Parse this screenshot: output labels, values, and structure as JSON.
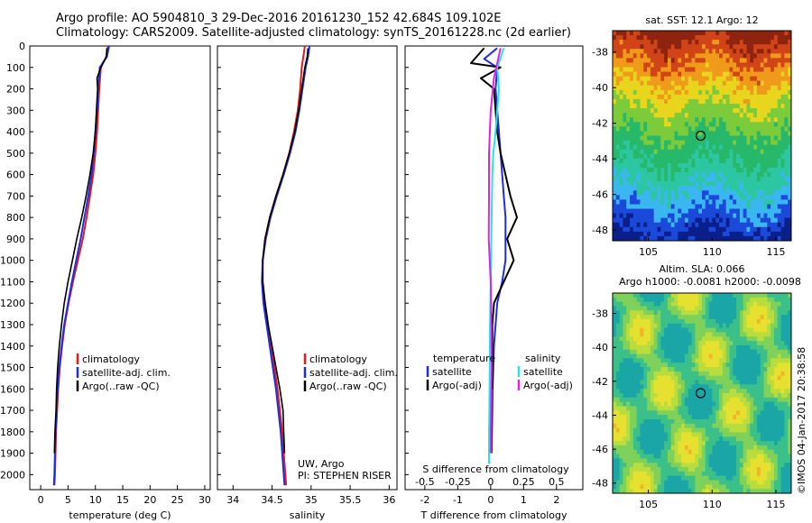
{
  "header": {
    "line1": "Argo profile: AO 5904810_3 29-Dec-2016 20161230_152 42.684S 109.102E",
    "line2": "Climatology: CARS2009. Satellite-adjusted climatology: synTS_20161228.nc (2d earlier)"
  },
  "colors": {
    "climatology": "#e8191c",
    "satellite": "#1f2de0",
    "argo": "#000000",
    "s_satellite": "#22e6e6",
    "s_argo": "#e81ee8"
  },
  "chart_data": [
    {
      "id": "temperature",
      "type": "line",
      "xlabel": "temperature (deg C)",
      "ylabel": "",
      "xlim": [
        -2,
        31
      ],
      "ylim": [
        2070,
        0
      ],
      "xticks": [
        0,
        5,
        10,
        15,
        20,
        25,
        30
      ],
      "xtick_labels": [
        "0",
        "5",
        "10",
        "15",
        "20",
        "25",
        "30"
      ],
      "yticks": [
        0,
        100,
        200,
        300,
        400,
        500,
        600,
        700,
        800,
        900,
        1000,
        1100,
        1200,
        1300,
        1400,
        1500,
        1600,
        1700,
        1800,
        1900,
        2000
      ],
      "ytick_labels": [
        "0",
        "100",
        "200",
        "300",
        "400",
        "500",
        "600",
        "700",
        "800",
        "900",
        "1000",
        "1100",
        "1200",
        "1300",
        "1400",
        "1500",
        "1600",
        "1700",
        "1800",
        "1900",
        "2000"
      ],
      "legend": [
        "climatology",
        "satellite-adj. clim.",
        "Argo(..raw -QC)"
      ],
      "series": [
        {
          "name": "climatology",
          "x": [
            12.3,
            12.0,
            11.0,
            10.7,
            10.5,
            10.3,
            10.0,
            9.6,
            9.0,
            8.4,
            7.7,
            6.8,
            5.9,
            5.1,
            4.4,
            3.9,
            3.5,
            3.2,
            3.0,
            2.8,
            2.7,
            2.6,
            2.5
          ],
          "y": [
            0,
            50,
            100,
            200,
            300,
            400,
            500,
            600,
            700,
            800,
            900,
            1000,
            1100,
            1200,
            1300,
            1400,
            1500,
            1600,
            1700,
            1800,
            1900,
            2000,
            2050
          ]
        },
        {
          "name": "satellite-adj. clim.",
          "x": [
            12.5,
            12.1,
            10.8,
            10.5,
            10.3,
            10.0,
            9.7,
            9.3,
            8.7,
            8.0,
            7.3,
            6.5,
            5.7,
            5.0,
            4.3,
            3.8,
            3.4,
            3.1,
            2.9,
            2.7,
            2.6,
            2.5,
            2.4
          ],
          "y": [
            0,
            50,
            100,
            200,
            300,
            400,
            500,
            600,
            700,
            800,
            900,
            1000,
            1100,
            1200,
            1300,
            1400,
            1500,
            1600,
            1700,
            1800,
            1900,
            2000,
            2050
          ]
        },
        {
          "name": "Argo(..raw -QC)",
          "x": [
            12.1,
            12.0,
            11.0,
            10.3,
            10.4,
            10.2,
            10.0,
            9.6,
            9.0,
            8.3,
            7.5,
            6.6,
            5.8,
            5.0,
            4.3,
            3.8,
            3.4,
            3.1,
            2.9,
            2.8,
            2.6,
            2.5
          ],
          "y": [
            10,
            50,
            100,
            150,
            200,
            300,
            400,
            500,
            600,
            700,
            800,
            900,
            1000,
            1100,
            1200,
            1300,
            1400,
            1500,
            1600,
            1700,
            1800,
            1900
          ]
        }
      ]
    },
    {
      "id": "salinity",
      "type": "line",
      "xlabel": "salinity",
      "ylabel": "",
      "xlim": [
        33.8,
        36.1
      ],
      "ylim": [
        2070,
        0
      ],
      "xticks": [
        34,
        34.5,
        35,
        35.5,
        36
      ],
      "xtick_labels": [
        "34",
        "34.5",
        "35",
        "35.5",
        "36"
      ],
      "legend": [
        "climatology",
        "satellite-adj. clim.",
        "Argo(..raw -QC)"
      ],
      "annotation_lines": [
        "UW, Argo",
        "PI: STEPHEN RISER"
      ],
      "series": [
        {
          "name": "climatology",
          "x": [
            34.92,
            34.9,
            34.88,
            34.86,
            34.83,
            34.78,
            34.72,
            34.64,
            34.55,
            34.47,
            34.41,
            34.38,
            34.38,
            34.41,
            34.45,
            34.49,
            34.53,
            34.57,
            34.6,
            34.63,
            34.65,
            34.67,
            34.68
          ],
          "y": [
            0,
            50,
            100,
            200,
            300,
            400,
            500,
            600,
            700,
            800,
            900,
            1000,
            1100,
            1200,
            1300,
            1400,
            1500,
            1600,
            1700,
            1800,
            1900,
            2000,
            2050
          ]
        },
        {
          "name": "satellite-adj. clim.",
          "x": [
            34.98,
            34.96,
            34.93,
            34.89,
            34.85,
            34.8,
            34.73,
            34.65,
            34.56,
            34.48,
            34.42,
            34.38,
            34.37,
            34.39,
            34.43,
            34.47,
            34.51,
            34.55,
            34.58,
            34.61,
            34.63,
            34.65,
            34.66
          ],
          "y": [
            0,
            50,
            100,
            200,
            300,
            400,
            500,
            600,
            700,
            800,
            900,
            1000,
            1100,
            1200,
            1300,
            1400,
            1500,
            1600,
            1700,
            1800,
            1900,
            2000,
            2050
          ]
        },
        {
          "name": "Argo(..raw -QC)",
          "x": [
            34.96,
            34.95,
            34.92,
            34.88,
            34.84,
            34.79,
            34.72,
            34.64,
            34.55,
            34.47,
            34.41,
            34.38,
            34.38,
            34.41,
            34.45,
            34.5,
            34.55,
            34.6,
            34.64,
            34.65,
            34.66
          ],
          "y": [
            10,
            50,
            100,
            200,
            300,
            400,
            500,
            600,
            700,
            800,
            900,
            1000,
            1100,
            1200,
            1300,
            1400,
            1500,
            1600,
            1700,
            1800,
            1900
          ]
        }
      ]
    },
    {
      "id": "difference",
      "type": "line",
      "xlabel": "T difference from climatology",
      "xlabel_top": "S difference from climatology",
      "ylabel": "",
      "xlim": [
        -2.6,
        2.8
      ],
      "ylim": [
        2070,
        0
      ],
      "xticks": [
        -2,
        -1,
        0,
        1,
        2
      ],
      "xtick_labels": [
        "-2",
        "-1",
        "0",
        "1",
        "2"
      ],
      "sticks": [
        -0.5,
        -0.25,
        0,
        0.25,
        0.5
      ],
      "stick_labels": [
        "-0.5",
        "-0.25",
        "0",
        "0.25",
        "0.5"
      ],
      "legend_temperature_title": "temperature",
      "legend_temperature": [
        "satellite",
        "Argo(-adj)"
      ],
      "legend_salinity_title": "salinity",
      "legend_salinity": [
        "satellite",
        "Argo(-adj)"
      ],
      "series": [
        {
          "name": "satellite",
          "x": [
            0.2,
            -0.2,
            0.2,
            0.15,
            0.2,
            0.25,
            0.3,
            0.35,
            0.4,
            0.45,
            0.45,
            0.45,
            0.35,
            0.2,
            0.15,
            0.1,
            0.08,
            0.06,
            0.05,
            0.04,
            0.03
          ],
          "y": [
            10,
            60,
            100,
            200,
            300,
            400,
            500,
            600,
            700,
            800,
            900,
            1000,
            1100,
            1200,
            1300,
            1400,
            1500,
            1600,
            1700,
            1800,
            1900
          ]
        },
        {
          "name": "Argo(-adj)",
          "x": [
            -0.2,
            -0.6,
            0.3,
            -0.3,
            0.1,
            0.15,
            0.2,
            0.3,
            0.6,
            0.8,
            0.5,
            0.7,
            0.4,
            0.1,
            0.05,
            0.05,
            0.06
          ],
          "y": [
            10,
            80,
            100,
            150,
            200,
            300,
            400,
            500,
            700,
            800,
            900,
            1000,
            1100,
            1200,
            1300,
            1500,
            1600
          ]
        },
        {
          "name": "satellite",
          "x": [
            0.4,
            0.2,
            0.25,
            0.2,
            0.15,
            0.08,
            0.05,
            0.03,
            0.02,
            0.0,
            -0.02,
            -0.03,
            -0.04,
            -0.05,
            -0.05,
            -0.05
          ],
          "y": [
            10,
            100,
            200,
            300,
            400,
            500,
            600,
            800,
            900,
            1100,
            1300,
            1500,
            1700,
            1800,
            1900,
            1950
          ]
        },
        {
          "name": "Argo(-adj)",
          "x": [
            0.3,
            0.1,
            0.0,
            -0.05,
            -0.05,
            -0.06,
            0.0,
            0.02,
            0.03,
            0.02,
            0.01,
            0.0,
            0.0
          ],
          "y": [
            10,
            150,
            300,
            500,
            700,
            900,
            1100,
            1300,
            1500,
            1600,
            1700,
            1800,
            1900
          ]
        }
      ]
    },
    {
      "id": "sst_map",
      "type": "heatmap",
      "title": "sat. SST: 12.1  Argo: 12",
      "xlim": [
        102.2,
        116.2
      ],
      "ylim": [
        -48.6,
        -36.8
      ],
      "xticks": [
        105,
        110,
        115
      ],
      "xtick_labels": [
        "105",
        "110",
        "115"
      ],
      "yticks": [
        -38,
        -40,
        -42,
        -44,
        -46,
        -48
      ],
      "ytick_labels": [
        "-38",
        "-40",
        "-42",
        "-44",
        "-46",
        "-48"
      ],
      "marker": {
        "lon": 109.1,
        "lat": -42.7
      }
    },
    {
      "id": "sla_map",
      "type": "heatmap",
      "title": "Altim. SLA: 0.066",
      "subtitle": "Argo h1000: -0.0081  h2000: -0.0098",
      "xlim": [
        102.2,
        116.2
      ],
      "ylim": [
        -48.6,
        -36.8
      ],
      "xticks": [
        105,
        110,
        115
      ],
      "xtick_labels": [
        "105",
        "110",
        "115"
      ],
      "yticks": [
        -38,
        -40,
        -42,
        -44,
        -46,
        -48
      ],
      "ytick_labels": [
        "-38",
        "-40",
        "-42",
        "-44",
        "-46",
        "-48"
      ],
      "marker": {
        "lon": 109.1,
        "lat": -42.7
      }
    }
  ],
  "credit": "©IMOS 04-Jan-2017 20:38:58"
}
